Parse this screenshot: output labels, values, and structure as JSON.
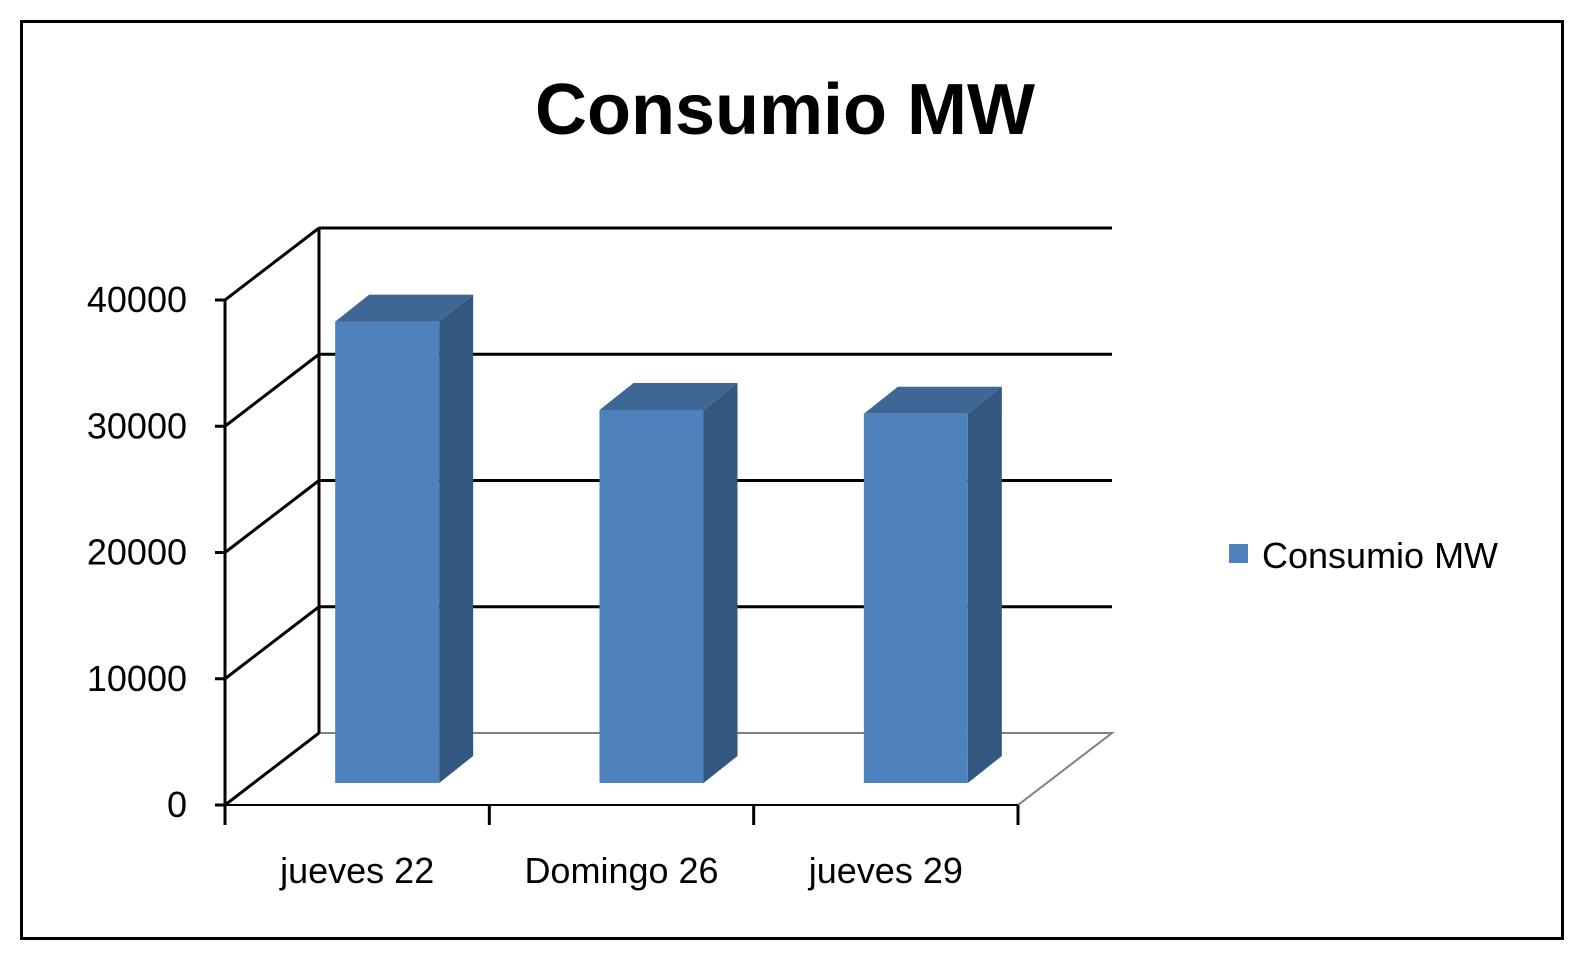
{
  "chart_data": {
    "type": "bar",
    "style": "3d-column",
    "title": "Consumio MW",
    "categories": [
      "jueves 22",
      "Domingo 26",
      "jueves 29"
    ],
    "series": [
      {
        "name": "Consumio MW",
        "values": [
          37500,
          30500,
          30200
        ],
        "color": "#4f81bd"
      }
    ],
    "yticks": [
      "0",
      "10000",
      "20000",
      "30000",
      "40000"
    ],
    "ylim": [
      0,
      40000
    ],
    "xlabel": "",
    "ylabel": "",
    "grid": true,
    "legend_position": "right"
  },
  "colors": {
    "bar_front": "#4f81bd",
    "bar_side": "#34577f",
    "bar_top": "#3f6796",
    "gridline": "#000000",
    "floor": "#808080"
  }
}
